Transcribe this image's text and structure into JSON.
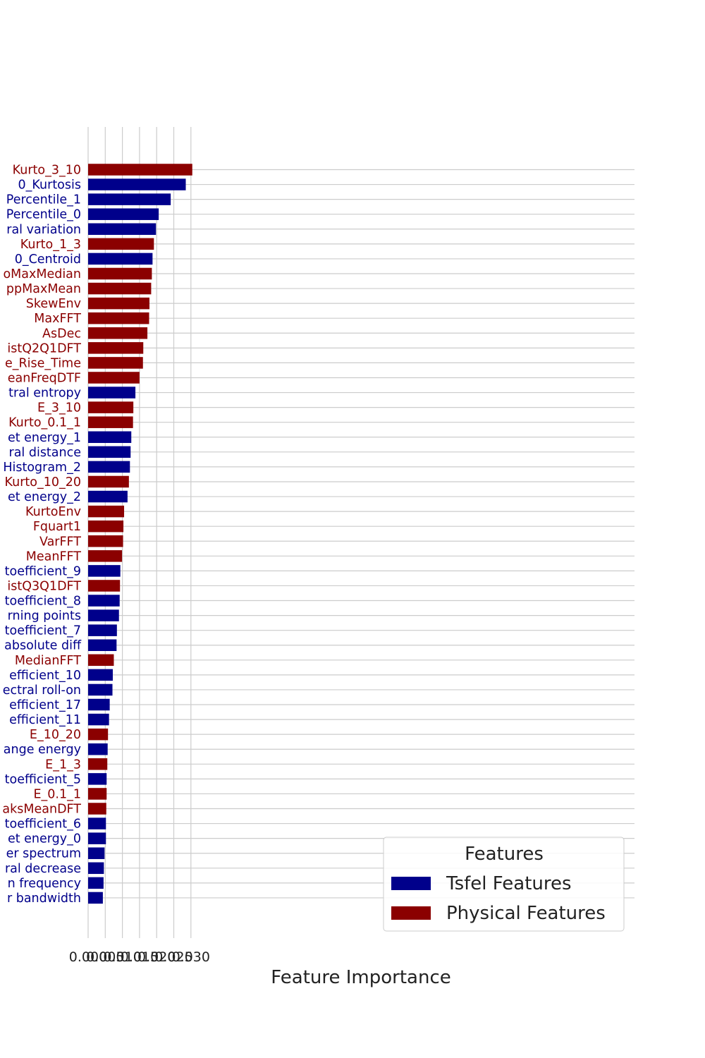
{
  "chart_data": {
    "type": "bar",
    "orientation": "horizontal",
    "title": "",
    "xlabel": "Feature Importance",
    "ylabel": "",
    "xlim": [
      0,
      0.032
    ],
    "x_ticks": [
      "0.000",
      "0.005",
      "0.010",
      "0.015",
      "0.020",
      "0.025",
      "0.030"
    ],
    "x_tick_values": [
      0,
      0.005,
      0.01,
      0.015,
      0.02,
      0.025,
      0.03
    ],
    "grid": true,
    "legend": {
      "title": "Features",
      "placement": "bottom-right",
      "entries": [
        {
          "key": "tsfel",
          "label": "Tsfel Features",
          "color": "#00008b"
        },
        {
          "key": "physical",
          "label": "Physical Features",
          "color": "#8b0000"
        }
      ]
    },
    "colors": {
      "tsfel": "#00008b",
      "physical": "#8b0000"
    },
    "bars": [
      {
        "label": "Kurto_3_10",
        "value": 0.0304,
        "group": "physical"
      },
      {
        "label": "0_Kurtosis",
        "value": 0.0285,
        "group": "tsfel"
      },
      {
        "label": "Percentile_1",
        "value": 0.0241,
        "group": "tsfel"
      },
      {
        "label": "Percentile_0",
        "value": 0.0206,
        "group": "tsfel"
      },
      {
        "label": "ral variation",
        "value": 0.0198,
        "group": "tsfel"
      },
      {
        "label": "Kurto_1_3",
        "value": 0.0192,
        "group": "physical"
      },
      {
        "label": "0_Centroid",
        "value": 0.0188,
        "group": "tsfel"
      },
      {
        "label": "oMaxMedian",
        "value": 0.0186,
        "group": "physical"
      },
      {
        "label": "ppMaxMean",
        "value": 0.0184,
        "group": "physical"
      },
      {
        "label": "SkewEnv",
        "value": 0.0179,
        "group": "physical"
      },
      {
        "label": "MaxFFT",
        "value": 0.0178,
        "group": "physical"
      },
      {
        "label": "AsDec",
        "value": 0.0173,
        "group": "physical"
      },
      {
        "label": "istQ2Q1DFT",
        "value": 0.0161,
        "group": "physical"
      },
      {
        "label": "e_Rise_Time",
        "value": 0.016,
        "group": "physical"
      },
      {
        "label": "eanFreqDTF",
        "value": 0.015,
        "group": "physical"
      },
      {
        "label": "tral entropy",
        "value": 0.0138,
        "group": "tsfel"
      },
      {
        "label": "E_3_10",
        "value": 0.0132,
        "group": "physical"
      },
      {
        "label": "Kurto_0.1_1",
        "value": 0.0131,
        "group": "physical"
      },
      {
        "label": "et energy_1",
        "value": 0.0126,
        "group": "tsfel"
      },
      {
        "label": "ral distance",
        "value": 0.0124,
        "group": "tsfel"
      },
      {
        "label": "Histogram_2",
        "value": 0.0122,
        "group": "tsfel"
      },
      {
        "label": "Kurto_10_20",
        "value": 0.0119,
        "group": "physical"
      },
      {
        "label": "et energy_2",
        "value": 0.0115,
        "group": "tsfel"
      },
      {
        "label": "KurtoEnv",
        "value": 0.0105,
        "group": "physical"
      },
      {
        "label": "Fquart1",
        "value": 0.0103,
        "group": "physical"
      },
      {
        "label": "VarFFT",
        "value": 0.0102,
        "group": "physical"
      },
      {
        "label": "MeanFFT",
        "value": 0.0099,
        "group": "physical"
      },
      {
        "label": "toefficient_9",
        "value": 0.0094,
        "group": "tsfel"
      },
      {
        "label": "istQ3Q1DFT",
        "value": 0.0093,
        "group": "physical"
      },
      {
        "label": "toefficient_8",
        "value": 0.0092,
        "group": "tsfel"
      },
      {
        "label": "rning points",
        "value": 0.009,
        "group": "tsfel"
      },
      {
        "label": "toefficient_7",
        "value": 0.0084,
        "group": "tsfel"
      },
      {
        "label": "absolute diff",
        "value": 0.0083,
        "group": "tsfel"
      },
      {
        "label": "MedianFFT",
        "value": 0.0075,
        "group": "physical"
      },
      {
        "label": "efficient_10",
        "value": 0.0072,
        "group": "tsfel"
      },
      {
        "label": "ectral roll-on",
        "value": 0.0071,
        "group": "tsfel"
      },
      {
        "label": "efficient_17",
        "value": 0.0063,
        "group": "tsfel"
      },
      {
        "label": "efficient_11",
        "value": 0.0061,
        "group": "tsfel"
      },
      {
        "label": "E_10_20",
        "value": 0.0058,
        "group": "physical"
      },
      {
        "label": "ange energy",
        "value": 0.0057,
        "group": "tsfel"
      },
      {
        "label": "E_1_3",
        "value": 0.0056,
        "group": "physical"
      },
      {
        "label": "toefficient_5",
        "value": 0.0054,
        "group": "tsfel"
      },
      {
        "label": "E_0.1_1",
        "value": 0.0054,
        "group": "physical"
      },
      {
        "label": "aksMeanDFT",
        "value": 0.0053,
        "group": "physical"
      },
      {
        "label": "toefficient_6",
        "value": 0.0052,
        "group": "tsfel"
      },
      {
        "label": "et energy_0",
        "value": 0.0052,
        "group": "tsfel"
      },
      {
        "label": "er spectrum",
        "value": 0.0048,
        "group": "tsfel"
      },
      {
        "label": "ral decrease",
        "value": 0.0046,
        "group": "tsfel"
      },
      {
        "label": "n frequency",
        "value": 0.0045,
        "group": "tsfel"
      },
      {
        "label": "r bandwidth",
        "value": 0.0043,
        "group": "tsfel"
      }
    ]
  }
}
